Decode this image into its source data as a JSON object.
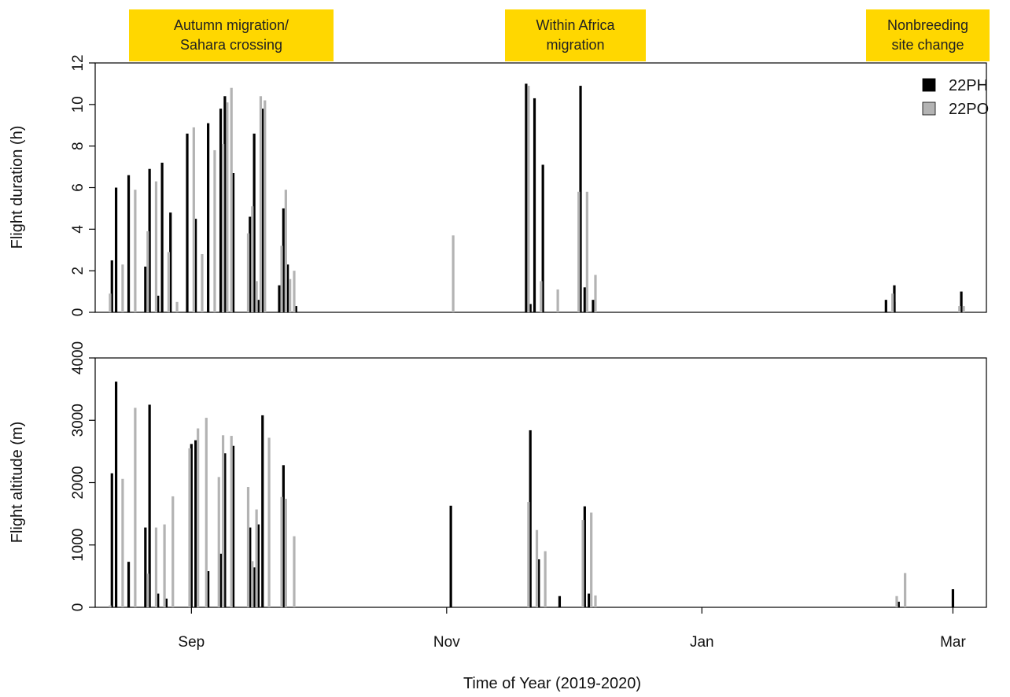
{
  "figure": {
    "xlabel": "Time of Year (2019-2020)",
    "phases": [
      {
        "lines": [
          "Autumn migration/",
          "Sahara crossing"
        ]
      },
      {
        "lines": [
          "Within Africa",
          "migration"
        ]
      },
      {
        "lines": [
          "Nonbreeding",
          "site change"
        ]
      }
    ],
    "legend": [
      {
        "label": "22PH",
        "color": "#000000"
      },
      {
        "label": "22PO",
        "color": "#b3b3b3"
      }
    ]
  },
  "chart_data": [
    {
      "type": "bar",
      "ylabel": "Flight duration (h)",
      "ylim": [
        0,
        12
      ],
      "yticks": [
        0,
        2,
        4,
        6,
        8,
        10,
        12
      ],
      "x_axis": {
        "type": "date",
        "range": [
          "2019-08-09",
          "2020-03-09"
        ],
        "ticks": [
          {
            "label": "Sep",
            "date": "2019-09-01"
          },
          {
            "label": "Nov",
            "date": "2019-11-01"
          },
          {
            "label": "Jan",
            "date": "2020-01-01"
          },
          {
            "label": "Mar",
            "date": "2020-03-01"
          }
        ]
      },
      "legend_position": "top-right",
      "series": [
        {
          "name": "22PH",
          "color": "#000000",
          "points": [
            {
              "x": "2019-08-13",
              "y": 2.5
            },
            {
              "x": "2019-08-14",
              "y": 6.0
            },
            {
              "x": "2019-08-17",
              "y": 6.6
            },
            {
              "x": "2019-08-21",
              "y": 2.2
            },
            {
              "x": "2019-08-22",
              "y": 6.9
            },
            {
              "x": "2019-08-24",
              "y": 0.8
            },
            {
              "x": "2019-08-25",
              "y": 7.2
            },
            {
              "x": "2019-08-27",
              "y": 4.8
            },
            {
              "x": "2019-08-25",
              "y": 0.1
            },
            {
              "x": "2019-08-24",
              "y": 0.2
            },
            {
              "x": "2019-08-26",
              "y": 0.2
            },
            {
              "x": "2019-08-23",
              "y": 0.1
            },
            {
              "x": "2019-08-28",
              "y": 0.1
            },
            {
              "x": "2019-08-18",
              "y": 0.1
            },
            {
              "x": "2019-08-16",
              "y": 0.1
            },
            {
              "x": "2019-08-20",
              "y": 0.1
            },
            {
              "x": "2019-08-30",
              "y": 0.1
            },
            {
              "x": "2019-08-30",
              "y": 0.1
            },
            {
              "x": "2019-08-30",
              "y": 0.1
            },
            {
              "x": "2019-09-02",
              "y": 0.1
            },
            {
              "x": "2019-08-31",
              "y": 0.1
            },
            {
              "x": "2019-08-20",
              "y": 0.1
            },
            {
              "x": "2019-08-21",
              "y": 0.1
            },
            {
              "x": "2019-08-23",
              "y": 8.6
            },
            {
              "x": "2019-08-27",
              "y": 0.0
            },
            {
              "x": "2019-08-13",
              "y": 0.0
            },
            {
              "x": "2019-08-30",
              "y": 0.0
            },
            {
              "x": "2019-08-30",
              "y": 0.0
            },
            {
              "x": "2019-08-28",
              "y": 0.0
            },
            {
              "x": "2019-08-29",
              "y": 0.0
            },
            {
              "x": "2019-08-30",
              "y": 0.0
            },
            {
              "x": "2019-09-01",
              "y": 0.0
            },
            {
              "x": "2019-08-29",
              "y": 0.0
            },
            {
              "x": "2019-08-29",
              "y": 0.0
            },
            {
              "x": "2019-08-28",
              "y": 0.0
            },
            {
              "x": "2019-08-31",
              "y": 0.0
            },
            {
              "x": "2019-08-30",
              "y": 0.0
            },
            {
              "x": "2019-08-30",
              "y": 0.0
            },
            {
              "x": "2019-08-30",
              "y": 0.0
            }
          ]
        },
        {
          "name": "22PO",
          "color": "#b3b3b3",
          "points": []
        }
      ]
    },
    {
      "type": "bar",
      "ylabel": "Flight altitude (m)",
      "ylim": [
        0,
        4000
      ],
      "yticks": [
        0,
        1000,
        2000,
        3000,
        4000
      ],
      "x_axis": {
        "type": "date",
        "range": [
          "2019-08-09",
          "2020-03-09"
        ],
        "ticks": [
          {
            "label": "Sep",
            "date": "2019-09-01"
          },
          {
            "label": "Nov",
            "date": "2019-11-01"
          },
          {
            "label": "Jan",
            "date": "2020-01-01"
          },
          {
            "label": "Mar",
            "date": "2020-03-01"
          }
        ]
      },
      "series": [
        {
          "name": "22PH",
          "color": "#000000",
          "points": []
        },
        {
          "name": "22PO",
          "color": "#b3b3b3",
          "points": []
        }
      ]
    }
  ]
}
